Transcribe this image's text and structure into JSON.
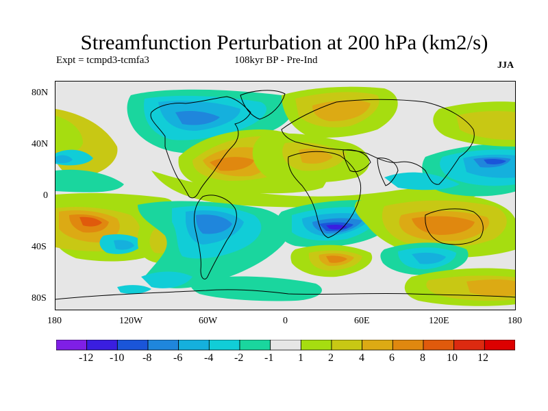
{
  "header": {
    "title": "Streamfunction Perturbation at 200 hPa (km2/s)",
    "experiment": "Expt = tcmpd3-tcmfa3",
    "period": "108kyr BP - Pre-Ind",
    "season": "JJA"
  },
  "map": {
    "lat_labels": [
      "80N",
      "40N",
      "0",
      "40S",
      "80S"
    ],
    "lon_labels": [
      "180",
      "120W",
      "60W",
      "0",
      "60E",
      "120E",
      "180"
    ],
    "background_color": "#e6e6e6",
    "field_regions": [
      {
        "name": "north-pacific-high",
        "value": 3
      },
      {
        "name": "north-america-low",
        "value": -3
      },
      {
        "name": "north-atlantic-high",
        "value": 6
      },
      {
        "name": "siberia-high",
        "value": 5
      },
      {
        "name": "west-pacific-low",
        "value": -5
      },
      {
        "name": "south-pacific-high",
        "value": 8
      },
      {
        "name": "south-atlantic-low",
        "value": -7
      },
      {
        "name": "south-indian-low",
        "value": -10
      },
      {
        "name": "australia-high",
        "value": 7
      },
      {
        "name": "southern-ocean-high",
        "value": 6
      },
      {
        "name": "southern-ocean-low",
        "value": -4
      }
    ]
  },
  "colorbar": {
    "labels": [
      "-12",
      "-10",
      "-8",
      "-6",
      "-4",
      "-2",
      "-1",
      "1",
      "2",
      "4",
      "6",
      "8",
      "10",
      "12"
    ],
    "colors": [
      "#7f1fe6",
      "#3a1ee0",
      "#1a55d9",
      "#1f86dc",
      "#15b0dd",
      "#11cdd7",
      "#1ad69e",
      "#e6e6e6",
      "#a6dd10",
      "#c8c814",
      "#dcaa14",
      "#e0880f",
      "#e05a0c",
      "#dc2a10",
      "#dc0000"
    ]
  }
}
